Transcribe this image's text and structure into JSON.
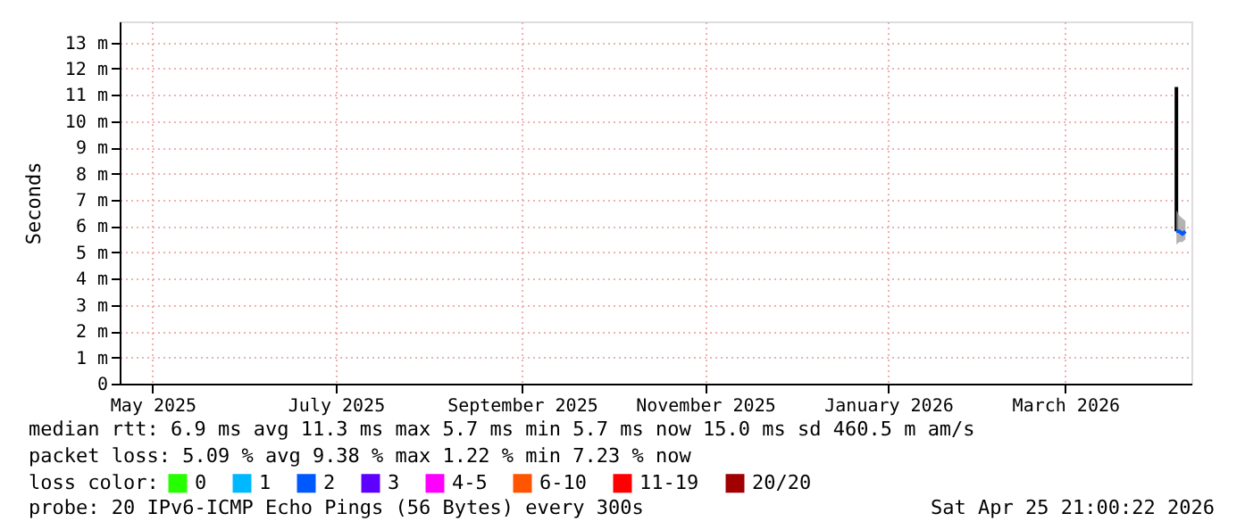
{
  "chart_data": {
    "type": "line",
    "ylabel": "Seconds",
    "legend_title": "loss color:",
    "legend": "bottom",
    "grid": true,
    "xlim": [
      "2025-04-20",
      "2026-04-12"
    ],
    "xticks": [
      {
        "value": "2025-05-01",
        "label": "May 2025"
      },
      {
        "value": "2025-07-01",
        "label": "July 2025"
      },
      {
        "value": "2025-09-01",
        "label": "September 2025"
      },
      {
        "value": "2025-11-01",
        "label": "November 2025"
      },
      {
        "value": "2026-01-01",
        "label": "January 2026"
      },
      {
        "value": "2026-03-01",
        "label": "March 2026"
      }
    ],
    "ylim": [
      0,
      13.8
    ],
    "yticks": [
      0,
      {
        "value": 1,
        "label": "1 m"
      },
      {
        "value": 2,
        "label": "2 m"
      },
      {
        "value": 3,
        "label": "3 m"
      },
      {
        "value": 4,
        "label": "4 m"
      },
      {
        "value": 5,
        "label": "5 m"
      },
      {
        "value": 6,
        "label": "6 m"
      },
      {
        "value": 7,
        "label": "7 m"
      },
      {
        "value": 8,
        "label": "8 m"
      },
      {
        "value": 9,
        "label": "9 m"
      },
      {
        "value": 10,
        "label": "10 m"
      },
      {
        "value": 11,
        "label": "11 m"
      },
      {
        "value": 12,
        "label": "12 m"
      },
      {
        "value": 13,
        "label": "13 m"
      }
    ],
    "series": [
      {
        "color": "#000000",
        "x": [
          "2026-04-07",
          "2026-04-07"
        ],
        "values": [
          11.3,
          5.8
        ]
      },
      {
        "name": "0",
        "color": "#26ff00"
      },
      {
        "name": "1",
        "color": "#00b8ff"
      },
      {
        "name": "2",
        "color": "#0059ff",
        "x": [
          "2026-04-07",
          "2026-04-08",
          "2026-04-09",
          "2026-04-10"
        ],
        "values": [
          5.8,
          5.8,
          5.7,
          5.8
        ],
        "lower": [
          5.3,
          5.4,
          5.4,
          5.5
        ],
        "upper": [
          6.6,
          6.4,
          6.3,
          6.2
        ]
      },
      {
        "name": "3",
        "color": "#5e00ff"
      },
      {
        "name": "4-5",
        "color": "#ff00ff"
      },
      {
        "name": "6-10",
        "color": "#ff5500"
      },
      {
        "name": "11-19",
        "color": "#ff0000"
      },
      {
        "name": "20/20",
        "color": "#a10000"
      }
    ],
    "annotations": [
      "median rtt:  6.9 ms avg  11.3 ms max  5.7 ms min  5.7 ms now  15.0 ms sd  460.5 m am/s",
      "packet loss: 5.09 % avg  9.38 % max  1.22 % min  7.23 % now",
      "probe:       20 IPv6-ICMP Echo Pings (56 Bytes) every 300s",
      "Sat Apr 25 21:00:22 2026"
    ]
  }
}
